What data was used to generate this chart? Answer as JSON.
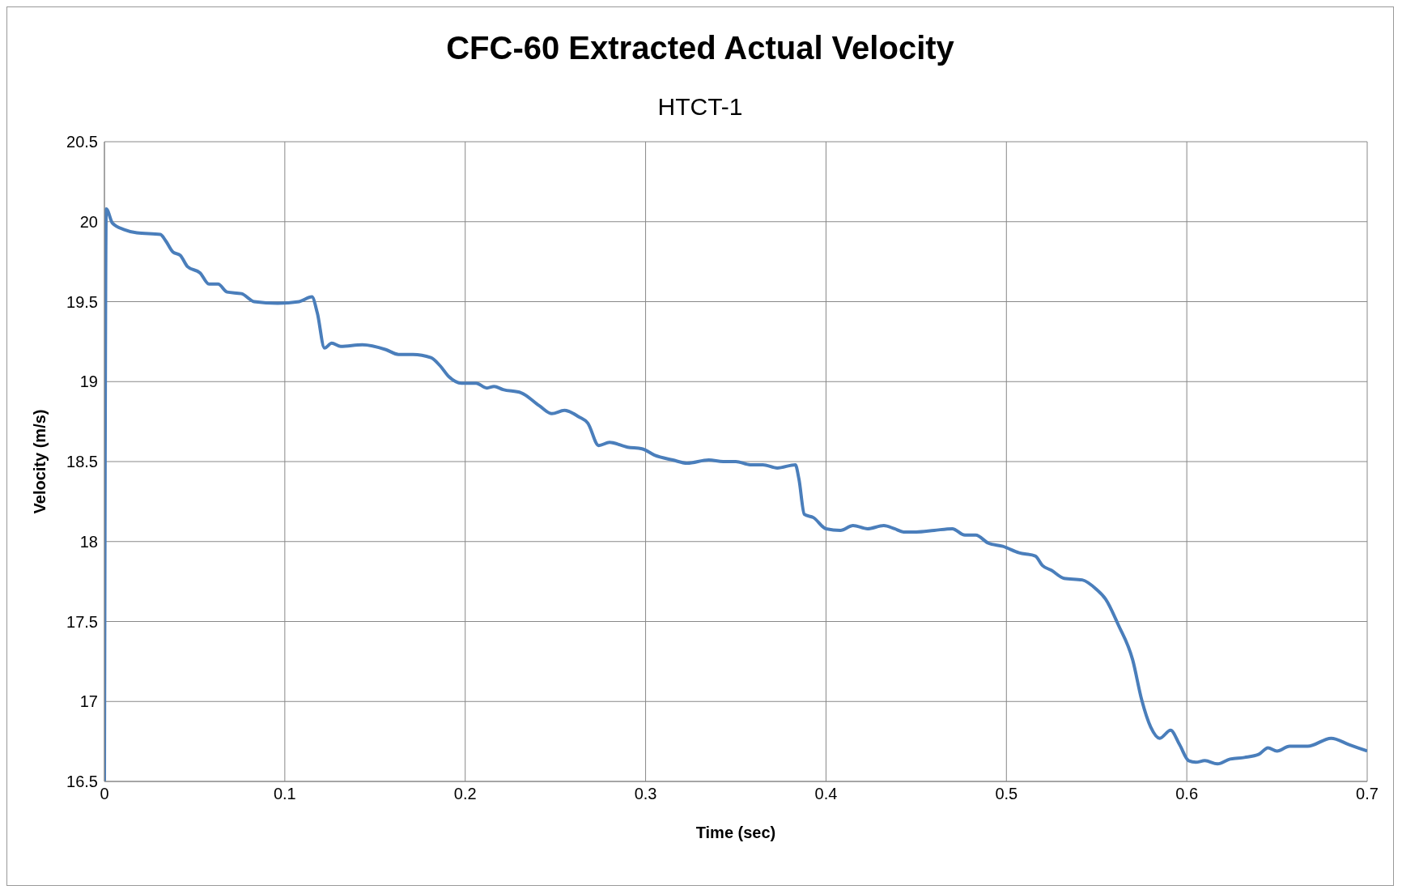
{
  "chart_data": {
    "type": "line",
    "title": "CFC-60  Extracted Actual Velocity",
    "subtitle": "HTCT-1",
    "xlabel": "Time (sec)",
    "ylabel": "Velocity (m/s)",
    "xlim": [
      0,
      0.7
    ],
    "xticks": [
      0,
      0.1,
      0.2,
      0.3,
      0.4,
      0.5,
      0.6,
      0.7
    ],
    "ylim": [
      16.5,
      20.5
    ],
    "yticks": [
      16.5,
      17,
      17.5,
      18,
      18.5,
      19,
      19.5,
      20,
      20.5
    ],
    "grid": true,
    "legend": false,
    "marker": "none",
    "line_style": "solid",
    "series": [
      {
        "color": "#4a7ebb",
        "x": [
          0,
          0.001,
          0.0045,
          0.011,
          0.018,
          0.031,
          0.034,
          0.038,
          0.042,
          0.046,
          0.053,
          0.058,
          0.063,
          0.068,
          0.076,
          0.083,
          0.096,
          0.108,
          0.115,
          0.118,
          0.122,
          0.126,
          0.131,
          0.143,
          0.156,
          0.163,
          0.171,
          0.181,
          0.186,
          0.191,
          0.198,
          0.206,
          0.212,
          0.216,
          0.221,
          0.231,
          0.241,
          0.248,
          0.255,
          0.263,
          0.268,
          0.274,
          0.28,
          0.29,
          0.298,
          0.305,
          0.315,
          0.323,
          0.335,
          0.343,
          0.35,
          0.358,
          0.365,
          0.373,
          0.383,
          0.385,
          0.388,
          0.393,
          0.4,
          0.408,
          0.415,
          0.423,
          0.432,
          0.438,
          0.443,
          0.45,
          0.46,
          0.47,
          0.477,
          0.483,
          0.49,
          0.498,
          0.507,
          0.516,
          0.52,
          0.525,
          0.532,
          0.542,
          0.55,
          0.555,
          0.562,
          0.57,
          0.575,
          0.58,
          0.585,
          0.591,
          0.596,
          0.601,
          0.605,
          0.61,
          0.617,
          0.624,
          0.632,
          0.64,
          0.645,
          0.65,
          0.657,
          0.667,
          0.68,
          0.69,
          0.7
        ],
        "values": [
          16.5,
          20.08,
          19.99,
          19.95,
          19.93,
          19.92,
          19.88,
          19.81,
          19.79,
          19.72,
          19.68,
          19.61,
          19.61,
          19.56,
          19.55,
          19.5,
          19.49,
          19.5,
          19.53,
          19.43,
          19.21,
          19.24,
          19.22,
          19.23,
          19.2,
          19.17,
          19.17,
          19.15,
          19.1,
          19.03,
          18.99,
          18.99,
          18.96,
          18.97,
          18.95,
          18.93,
          18.85,
          18.8,
          18.82,
          18.78,
          18.74,
          18.6,
          18.62,
          18.59,
          18.58,
          18.54,
          18.51,
          18.49,
          18.51,
          18.5,
          18.5,
          18.48,
          18.48,
          18.46,
          18.48,
          18.39,
          18.17,
          18.15,
          18.08,
          18.07,
          18.1,
          18.08,
          18.1,
          18.08,
          18.06,
          18.06,
          18.07,
          18.08,
          18.04,
          18.04,
          17.99,
          17.97,
          17.93,
          17.91,
          17.85,
          17.82,
          17.77,
          17.76,
          17.7,
          17.64,
          17.48,
          17.26,
          17.01,
          16.84,
          16.77,
          16.82,
          16.73,
          16.63,
          16.62,
          16.63,
          16.61,
          16.64,
          16.65,
          16.67,
          16.71,
          16.69,
          16.72,
          16.72,
          16.77,
          16.73,
          16.69
        ]
      }
    ]
  }
}
